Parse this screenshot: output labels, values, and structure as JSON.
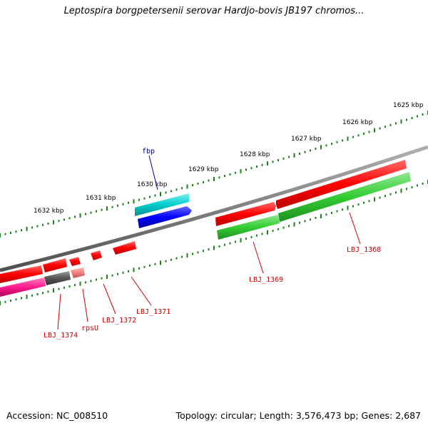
{
  "title": "Leptospira borgpetersenii serovar Hardjo-bovis JB197 chromos...",
  "footer": {
    "accession": "Accession: NC_008510",
    "summary": "Topology: circular; Length: 3,576,473 bp; Genes: 2,687"
  },
  "colors": {
    "backbone": "#808080",
    "ticks": "#208020",
    "gene_red": "#ff0000",
    "gene_green": "#33cc33",
    "gene_cyan": "#00cccc",
    "gene_blue": "#0000ff",
    "gene_magenta": "#ff1a8c",
    "gene_gray": "#555555",
    "gene_pink": "#f08080",
    "label_red": "#cc0000",
    "label_blue": "#000099"
  },
  "tick_labels": [
    "1625 kbp",
    "1626 kbp",
    "1627 kbp",
    "1628 kbp",
    "1629 kbp",
    "1630 kbp",
    "1631 kbp",
    "1632 kbp"
  ],
  "gene_labels": {
    "fbp": "fbp",
    "lbj1368": "LBJ_1368",
    "lbj1369": "LBJ_1369",
    "lbj1371": "LBJ_1371",
    "lbj1372": "LBJ_1372",
    "rpsu": "rpsU",
    "lbj1374": "LBJ_1374"
  }
}
